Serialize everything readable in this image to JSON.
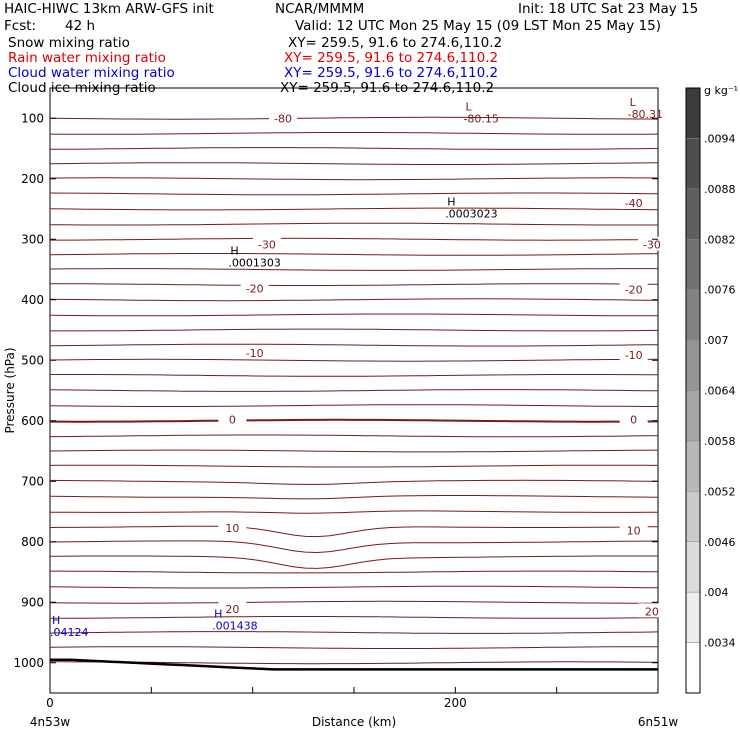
{
  "header": {
    "title_left": "HAIC-HIWC 13km ARW-GFS init",
    "center": "NCAR/MMMM",
    "init": "Init: 18 UTC Sat 23 May 15",
    "fcst_label": "Fcst:",
    "fcst_value": "42 h",
    "valid": "Valid: 12 UTC Mon 25 May 15 (09 LST Mon 25 May 15)"
  },
  "fields": [
    {
      "name": "Snow mixing ratio",
      "xy": "XY= 259.5, 91.6 to 274.6,110.2",
      "color": "#000000"
    },
    {
      "name": "Rain water mixing ratio",
      "xy": "XY= 259.5, 91.6 to 274.6,110.2",
      "color": "#e00000"
    },
    {
      "name": "Cloud water mixing ratio",
      "xy": "XY= 259.5, 91.6 to 274.6,110.2",
      "color": "#0000d0"
    },
    {
      "name": "Cloud ice mixing ratio",
      "xy": "XY= 259.5, 91.6 to 274.6,110.2",
      "color": "#000000"
    }
  ],
  "chart_data": {
    "type": "line",
    "xlabel": "Distance (km)",
    "ylabel": "Pressure (hPa)",
    "xlim": [
      0,
      300
    ],
    "ylim": [
      1050,
      50
    ],
    "x_ticks": [
      0,
      200
    ],
    "y_ticks": [
      100,
      200,
      300,
      400,
      500,
      600,
      700,
      800,
      900,
      1000
    ],
    "x_endpoint_labels": {
      "left": "4n53w",
      "right": "6n51w"
    },
    "contour_color": "#7a1a1a",
    "temperature_labels": [
      {
        "text": "-80",
        "x": 115,
        "p": 100
      },
      {
        "text": "-40",
        "x": 288,
        "p": 240
      },
      {
        "text": "-30",
        "x": 107,
        "p": 309
      },
      {
        "text": "-30",
        "x": 297,
        "p": 309
      },
      {
        "text": "-20",
        "x": 101,
        "p": 381
      },
      {
        "text": "-20",
        "x": 288,
        "p": 383
      },
      {
        "text": "-10",
        "x": 101,
        "p": 488
      },
      {
        "text": "-10",
        "x": 288,
        "p": 491
      },
      {
        "text": "0",
        "x": 90,
        "p": 598
      },
      {
        "text": "0",
        "x": 288,
        "p": 598
      },
      {
        "text": "10",
        "x": 90,
        "p": 777
      },
      {
        "text": "10",
        "x": 288,
        "p": 781
      },
      {
        "text": "20",
        "x": 90,
        "p": 911
      },
      {
        "text": "20",
        "x": 297,
        "p": 915
      }
    ],
    "extrema": [
      {
        "mark": "L",
        "value": "-80.15",
        "x": 204,
        "p": 87,
        "color": "#7a1a1a"
      },
      {
        "mark": "L",
        "value": "-80.31",
        "x": 285,
        "p": 80,
        "color": "#7a1a1a"
      },
      {
        "mark": "H",
        "value": ".0003023",
        "x": 195,
        "p": 244,
        "color": "#000000"
      },
      {
        "mark": "H",
        "value": ".0001303",
        "x": 88,
        "p": 325,
        "color": "#000000"
      },
      {
        "mark": "H",
        "value": ".04124",
        "x": 0,
        "p": 936,
        "color": "#0000d0"
      },
      {
        "mark": "H",
        "value": ".001438",
        "x": 80,
        "p": 925,
        "color": "#0000d0"
      }
    ],
    "colorbar": {
      "unit": "g kg⁻¹",
      "tick_labels": [
        ".0094",
        ".0088",
        ".0082",
        ".0076",
        ".007",
        ".0064",
        ".0058",
        ".0052",
        ".0046",
        ".004",
        ".0034"
      ]
    }
  }
}
